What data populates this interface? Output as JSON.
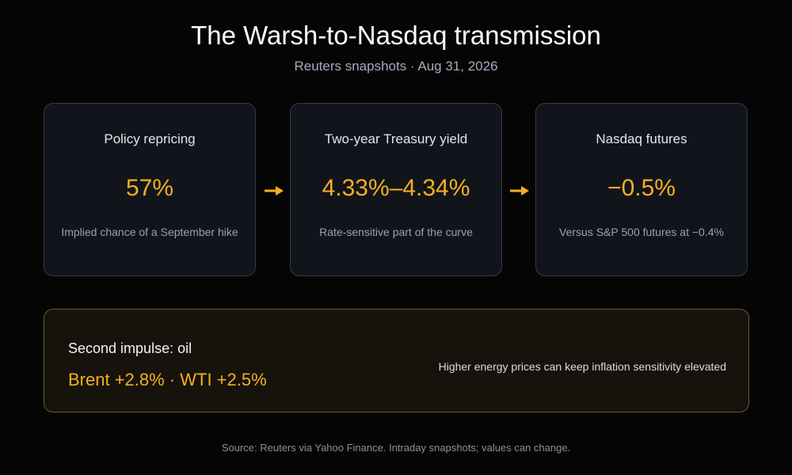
{
  "header": {
    "title": "The Warsh-to-Nasdaq transmission",
    "subtitle": "Reuters snapshots · Aug 31, 2026"
  },
  "cards": [
    {
      "label": "Policy repricing",
      "value": "57%",
      "note": "Implied chance of a September hike"
    },
    {
      "label": "Two-year Treasury yield",
      "value": "4.33%–4.34%",
      "note": "Rate-sensitive part of the curve"
    },
    {
      "label": "Nasdaq futures",
      "value": "−0.5%",
      "note": "Versus S&P 500 futures at −0.4%"
    }
  ],
  "impulse": {
    "label": "Second impulse: oil",
    "value": "Brent +2.8% · WTI +2.5%",
    "note": "Higher energy prices can keep inflation sensitivity elevated"
  },
  "source": "Source: Reuters via Yahoo Finance. Intraday snapshots; values can change.",
  "colors": {
    "accent": "#f5b01d",
    "background": "#050505",
    "card": "#12141b"
  }
}
